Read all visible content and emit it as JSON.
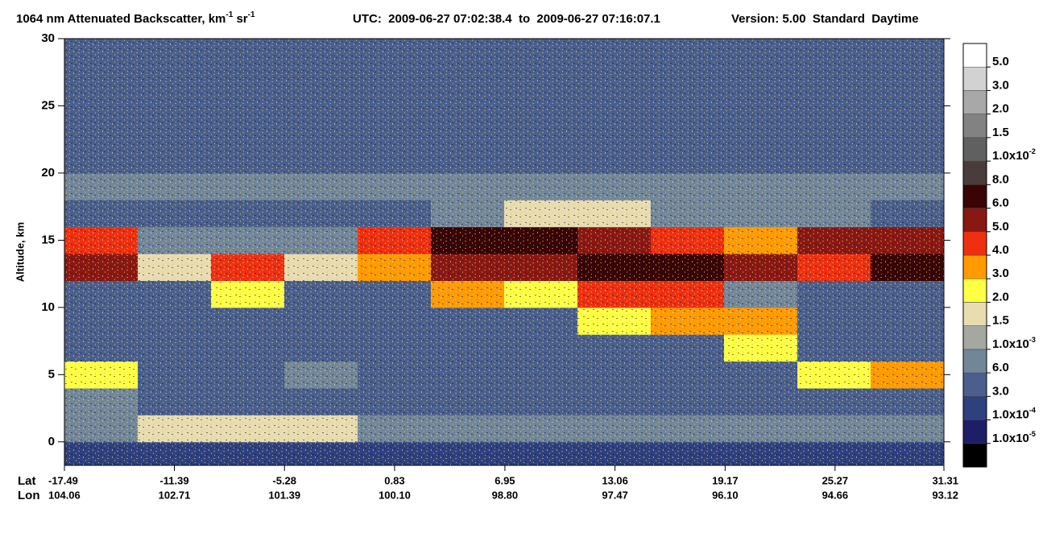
{
  "chart_data": {
    "type": "heatmap",
    "title_parts": [
      {
        "text": "1064 nm Attenuated Backscatter, km",
        "sup": false
      },
      {
        "text": "-1",
        "sup": true
      },
      {
        "text": " sr",
        "sup": false
      },
      {
        "text": "-1",
        "sup": true
      }
    ],
    "subtitle": "UTC:  2009-06-27 07:02:38.4  to  2009-06-27 07:16:07.1",
    "version": "Version: 5.00  Standard  Daytime",
    "y_label": "Altitude, km",
    "x_row_labels": [
      "Lat",
      "Lon"
    ],
    "xlim": [
      -17.49,
      31.31
    ],
    "xticks": [
      -17.49,
      -11.39,
      -5.28,
      0.83,
      6.95,
      13.06,
      19.17,
      25.27,
      31.31
    ],
    "lon_labels": [
      "104.06",
      "102.71",
      "101.39",
      "100.10",
      "98.80",
      "97.47",
      "96.10",
      "94.66",
      "93.12"
    ],
    "ylim": [
      -1.75,
      30
    ],
    "yticks": [
      0,
      5,
      10,
      15,
      20,
      25,
      30
    ],
    "xbins": [
      -17.49,
      -13.42,
      -9.36,
      -5.29,
      -1.22,
      2.84,
      6.91,
      10.98,
      15.04,
      19.11,
      23.18,
      27.24,
      31.31
    ],
    "ybins": [
      -1.75,
      0,
      2,
      4,
      6,
      8,
      10,
      12,
      14,
      16,
      18,
      20,
      22,
      24,
      26,
      28,
      30
    ],
    "z": [
      [
        0.0002,
        0.0002,
        0.0002,
        0.0002,
        0.0002,
        0.0002,
        0.0002,
        0.0002,
        0.0002,
        0.0002,
        0.0002,
        0.0002
      ],
      [
        0.0008,
        0.0015,
        0.0015,
        0.0015,
        0.0008,
        0.0008,
        0.0008,
        0.0006,
        0.0006,
        0.0006,
        0.0006,
        0.0006
      ],
      [
        0.0006,
        0.0005,
        0.0005,
        0.0005,
        0.0005,
        0.0005,
        0.0005,
        0.0005,
        0.0005,
        0.0005,
        0.0005,
        0.0005
      ],
      [
        0.002,
        0.0005,
        0.0005,
        0.0008,
        0.0005,
        0.0005,
        0.0005,
        0.0005,
        0.0005,
        0.0005,
        0.002,
        0.003
      ],
      [
        0.0005,
        0.0005,
        0.0005,
        0.0005,
        0.0005,
        0.0005,
        0.0005,
        0.0005,
        0.0005,
        0.002,
        0.0005,
        0.0005
      ],
      [
        0.0005,
        0.0005,
        0.0005,
        0.0005,
        0.0005,
        0.0005,
        0.0005,
        0.002,
        0.003,
        0.003,
        0.0005,
        0.0005
      ],
      [
        0.0005,
        0.0005,
        0.002,
        0.0005,
        0.0005,
        0.003,
        0.002,
        0.004,
        0.004,
        0.0008,
        0.0005,
        0.0005
      ],
      [
        0.005,
        0.0015,
        0.004,
        0.0015,
        0.003,
        0.005,
        0.005,
        0.006,
        0.006,
        0.005,
        0.004,
        0.006
      ],
      [
        0.004,
        0.0006,
        0.0006,
        0.0006,
        0.004,
        0.006,
        0.006,
        0.005,
        0.004,
        0.003,
        0.005,
        0.005
      ],
      [
        0.0005,
        0.0005,
        0.0005,
        0.0005,
        0.0005,
        0.0008,
        0.0015,
        0.0015,
        0.0008,
        0.0008,
        0.0008,
        0.0005
      ],
      [
        0.0006,
        0.0006,
        0.0006,
        0.0006,
        0.0006,
        0.0006,
        0.0006,
        0.0006,
        0.0006,
        0.0006,
        0.0006,
        0.0006
      ],
      [
        0.0003,
        0.0003,
        0.0003,
        0.0003,
        0.0003,
        0.0003,
        0.0003,
        0.0003,
        0.0003,
        0.0003,
        0.0003,
        0.0003
      ],
      [
        0.0003,
        0.0003,
        0.0003,
        0.0003,
        0.0003,
        0.0003,
        0.0003,
        0.0003,
        0.0003,
        0.0003,
        0.0003,
        0.0003
      ],
      [
        0.0003,
        0.0003,
        0.0003,
        0.0003,
        0.0003,
        0.0003,
        0.0003,
        0.0003,
        0.0003,
        0.0003,
        0.0003,
        0.0003
      ],
      [
        0.0003,
        0.0003,
        0.0003,
        0.0003,
        0.0003,
        0.0003,
        0.0003,
        0.0003,
        0.0003,
        0.0003,
        0.0003,
        0.0003
      ],
      [
        0.0003,
        0.0003,
        0.0003,
        0.0003,
        0.0003,
        0.0003,
        0.0003,
        0.0003,
        0.0003,
        0.0003,
        0.0003,
        0.0003
      ]
    ],
    "color_levels": [
      {
        "value": 1e-05,
        "label": "1.0x10",
        "sup": "-5"
      },
      {
        "value": 0.0001,
        "label": "1.0x10",
        "sup": "-4"
      },
      {
        "value": 0.0003,
        "label": "3.0"
      },
      {
        "value": 0.0006,
        "label": "6.0"
      },
      {
        "value": 0.001,
        "label": "1.0x10",
        "sup": "-3"
      },
      {
        "value": 0.0015,
        "label": "1.5"
      },
      {
        "value": 0.002,
        "label": "2.0"
      },
      {
        "value": 0.003,
        "label": "3.0"
      },
      {
        "value": 0.004,
        "label": "4.0"
      },
      {
        "value": 0.005,
        "label": "5.0"
      },
      {
        "value": 0.006,
        "label": "6.0"
      },
      {
        "value": 0.008,
        "label": "8.0"
      },
      {
        "value": 0.01,
        "label": "1.0x10",
        "sup": "-2"
      },
      {
        "value": 0.015,
        "label": "1.5"
      },
      {
        "value": 0.02,
        "label": "2.0"
      },
      {
        "value": 0.03,
        "label": "3.0"
      },
      {
        "value": 0.05,
        "label": "5.0"
      }
    ],
    "colors": [
      "#000000",
      "#1d1f66",
      "#2f407e",
      "#4a5f8c",
      "#728699",
      "#a4a8a0",
      "#e8dcb0",
      "#ffff44",
      "#ff9a00",
      "#ee3010",
      "#8a1812",
      "#380405",
      "#4a3c3a",
      "#606060",
      "#828282",
      "#a8a8a8",
      "#d2d2d2",
      "#ffffff"
    ]
  }
}
